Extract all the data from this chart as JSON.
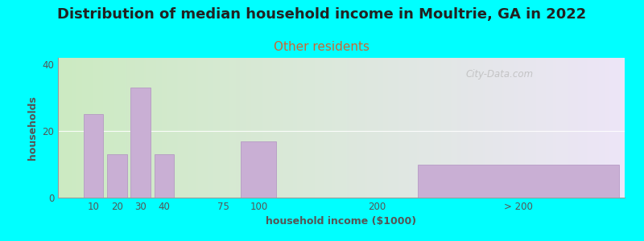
{
  "title": "Distribution of median household income in Moultrie, GA in 2022",
  "subtitle": "Other residents",
  "xlabel": "household income ($1000)",
  "ylabel": "households",
  "background_color": "#00FFFF",
  "bar_color": "#c9afd4",
  "bar_edge_color": "#b090c0",
  "categories": [
    "10",
    "20",
    "30",
    "40",
    "75",
    "100",
    "200",
    "> 200"
  ],
  "values": [
    25,
    13,
    33,
    13,
    0,
    17,
    0,
    10
  ],
  "ylim": [
    0,
    42
  ],
  "yticks": [
    0,
    20,
    40
  ],
  "title_fontsize": 13,
  "subtitle_fontsize": 11,
  "subtitle_color": "#cc6633",
  "axis_label_fontsize": 9,
  "tick_fontsize": 8.5,
  "watermark_text": "City-Data.com",
  "grad_left": "#c8e8c0",
  "grad_right": "#e8e0f0",
  "grad_top": "#f0eaf8",
  "grad_bottom": "#d0ecc8"
}
